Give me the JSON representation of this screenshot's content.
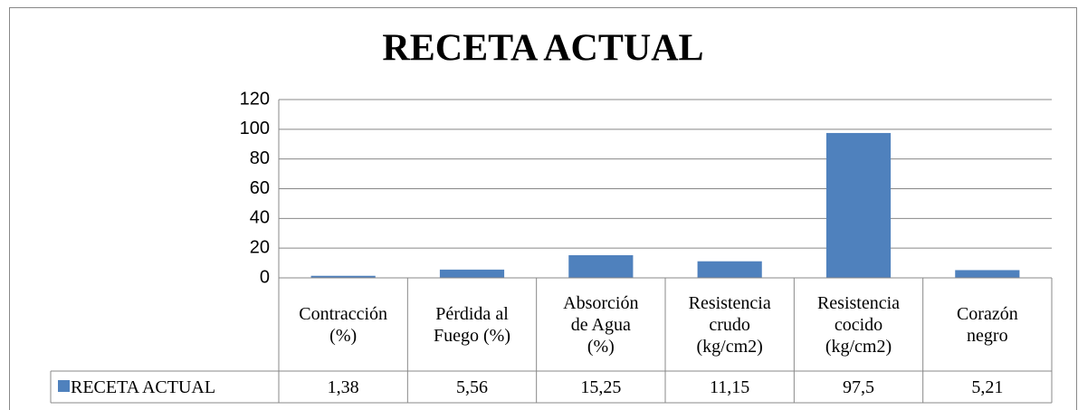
{
  "chart_data": {
    "type": "bar",
    "title": "RECETA ACTUAL",
    "categories": [
      "Contracción\n(%)",
      "Pérdida al\nFuego (%)",
      "Absorción\nde Agua\n(%)",
      "Resistencia\ncrudo\n(kg/cm2)",
      "Resistencia\ncocido\n(kg/cm2)",
      "Corazón\nnegro"
    ],
    "series": [
      {
        "name": "RECETA ACTUAL",
        "color": "#4f81bd",
        "values": [
          1.38,
          5.56,
          15.25,
          11.15,
          97.5,
          5.21
        ],
        "value_labels": [
          "1,38",
          "5,56",
          "15,25",
          "11,15",
          "97,5",
          "5,21"
        ]
      }
    ],
    "ylim": [
      0,
      120
    ],
    "yticks": [
      0,
      20,
      40,
      60,
      80,
      100,
      120
    ],
    "grid": true
  }
}
